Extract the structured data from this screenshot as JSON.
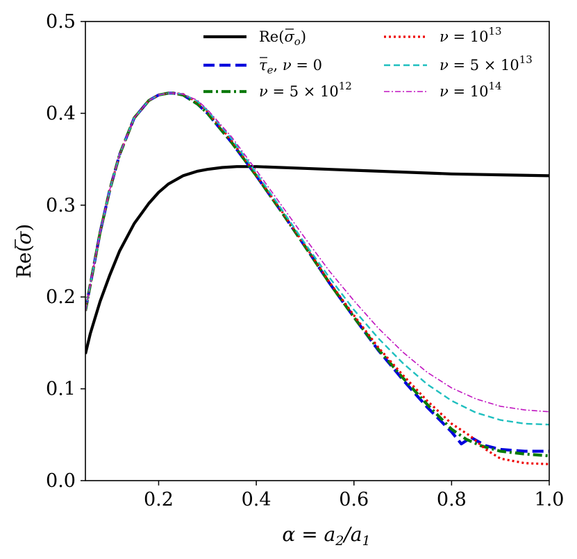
{
  "chart_data": {
    "type": "line",
    "xlabel_parts": {
      "pre": "α = a",
      "sub1": "2",
      "mid": "/a",
      "sub2": "1"
    },
    "ylabel_parts": {
      "pre": "Re(",
      "sym": "σ",
      "post": ")"
    },
    "xlim": [
      0.05,
      1.0
    ],
    "ylim": [
      0.0,
      0.5
    ],
    "xticks": [
      0.2,
      0.4,
      0.6,
      0.8,
      1.0
    ],
    "xtick_labels": [
      "0.2",
      "0.4",
      "0.6",
      "0.8",
      "1.0"
    ],
    "yticks": [
      0.0,
      0.1,
      0.2,
      0.3,
      0.4,
      0.5
    ],
    "ytick_labels": [
      "0.0",
      "0.1",
      "0.2",
      "0.3",
      "0.4",
      "0.5"
    ],
    "grid": false,
    "legend_position": "top-right",
    "series": [
      {
        "name": "Re(σ̄o)",
        "color": "#000000",
        "style": "solid",
        "x": [
          0.05,
          0.06,
          0.08,
          0.1,
          0.12,
          0.15,
          0.18,
          0.2,
          0.22,
          0.25,
          0.28,
          0.3,
          0.33,
          0.36,
          0.4,
          0.45,
          0.5,
          0.6,
          0.7,
          0.8,
          0.9,
          1.0
        ],
        "y": [
          0.138,
          0.16,
          0.195,
          0.224,
          0.25,
          0.28,
          0.302,
          0.314,
          0.323,
          0.332,
          0.337,
          0.339,
          0.341,
          0.342,
          0.342,
          0.341,
          0.34,
          0.338,
          0.336,
          0.334,
          0.333,
          0.332
        ]
      },
      {
        "name": "τ̄e, ν = 0",
        "color": "#0000dd",
        "style": "dashed",
        "x": [
          0.05,
          0.08,
          0.1,
          0.12,
          0.15,
          0.18,
          0.2,
          0.22,
          0.23,
          0.25,
          0.28,
          0.3,
          0.35,
          0.4,
          0.45,
          0.5,
          0.55,
          0.6,
          0.65,
          0.7,
          0.75,
          0.8,
          0.82,
          0.84,
          0.87,
          0.9,
          0.95,
          1.0
        ],
        "y": [
          0.185,
          0.27,
          0.317,
          0.355,
          0.395,
          0.414,
          0.42,
          0.422,
          0.422,
          0.42,
          0.41,
          0.4,
          0.368,
          0.332,
          0.294,
          0.255,
          0.215,
          0.178,
          0.142,
          0.11,
          0.08,
          0.053,
          0.04,
          0.047,
          0.038,
          0.034,
          0.032,
          0.032
        ]
      },
      {
        "name": "ν = 5 × 10",
        "name_sup": "12",
        "color": "#0a7a0a",
        "style": "dashdot",
        "x": [
          0.05,
          0.08,
          0.1,
          0.12,
          0.15,
          0.18,
          0.2,
          0.22,
          0.23,
          0.25,
          0.28,
          0.3,
          0.35,
          0.4,
          0.45,
          0.5,
          0.55,
          0.6,
          0.65,
          0.7,
          0.75,
          0.8,
          0.83,
          0.86,
          0.9,
          0.95,
          1.0
        ],
        "y": [
          0.185,
          0.27,
          0.317,
          0.355,
          0.395,
          0.414,
          0.42,
          0.422,
          0.422,
          0.42,
          0.41,
          0.4,
          0.368,
          0.332,
          0.294,
          0.255,
          0.215,
          0.178,
          0.143,
          0.112,
          0.083,
          0.056,
          0.045,
          0.038,
          0.032,
          0.029,
          0.027
        ]
      },
      {
        "name": "ν = 10",
        "name_sup": "13",
        "color": "#ee0000",
        "style": "dotted",
        "x": [
          0.05,
          0.08,
          0.1,
          0.12,
          0.15,
          0.18,
          0.2,
          0.22,
          0.23,
          0.25,
          0.28,
          0.3,
          0.35,
          0.4,
          0.45,
          0.5,
          0.55,
          0.6,
          0.65,
          0.7,
          0.75,
          0.8,
          0.84,
          0.87,
          0.9,
          0.95,
          1.0
        ],
        "y": [
          0.185,
          0.27,
          0.317,
          0.355,
          0.395,
          0.414,
          0.42,
          0.422,
          0.422,
          0.421,
          0.412,
          0.402,
          0.37,
          0.333,
          0.295,
          0.256,
          0.216,
          0.18,
          0.145,
          0.115,
          0.087,
          0.062,
          0.048,
          0.034,
          0.024,
          0.019,
          0.018
        ]
      },
      {
        "name": "ν = 5 × 10",
        "name_sup": "13",
        "color": "#1fbfbf",
        "style": "dashed-short",
        "x": [
          0.05,
          0.08,
          0.1,
          0.12,
          0.15,
          0.18,
          0.2,
          0.22,
          0.23,
          0.25,
          0.28,
          0.3,
          0.35,
          0.4,
          0.45,
          0.5,
          0.55,
          0.6,
          0.65,
          0.7,
          0.75,
          0.8,
          0.85,
          0.9,
          0.95,
          1.0
        ],
        "y": [
          0.185,
          0.27,
          0.317,
          0.355,
          0.395,
          0.414,
          0.42,
          0.422,
          0.422,
          0.421,
          0.413,
          0.403,
          0.372,
          0.335,
          0.297,
          0.258,
          0.221,
          0.186,
          0.155,
          0.128,
          0.105,
          0.087,
          0.074,
          0.066,
          0.062,
          0.061
        ]
      },
      {
        "name": "ν = 10",
        "name_sup": "14",
        "color": "#c014c0",
        "style": "dashdot-fine",
        "x": [
          0.05,
          0.08,
          0.1,
          0.12,
          0.15,
          0.18,
          0.2,
          0.22,
          0.23,
          0.25,
          0.28,
          0.3,
          0.35,
          0.4,
          0.45,
          0.5,
          0.55,
          0.6,
          0.65,
          0.7,
          0.75,
          0.8,
          0.85,
          0.9,
          0.95,
          1.0
        ],
        "y": [
          0.185,
          0.27,
          0.317,
          0.355,
          0.395,
          0.414,
          0.42,
          0.422,
          0.422,
          0.421,
          0.414,
          0.404,
          0.374,
          0.338,
          0.301,
          0.264,
          0.228,
          0.196,
          0.166,
          0.14,
          0.118,
          0.101,
          0.089,
          0.081,
          0.077,
          0.075
        ]
      }
    ]
  }
}
